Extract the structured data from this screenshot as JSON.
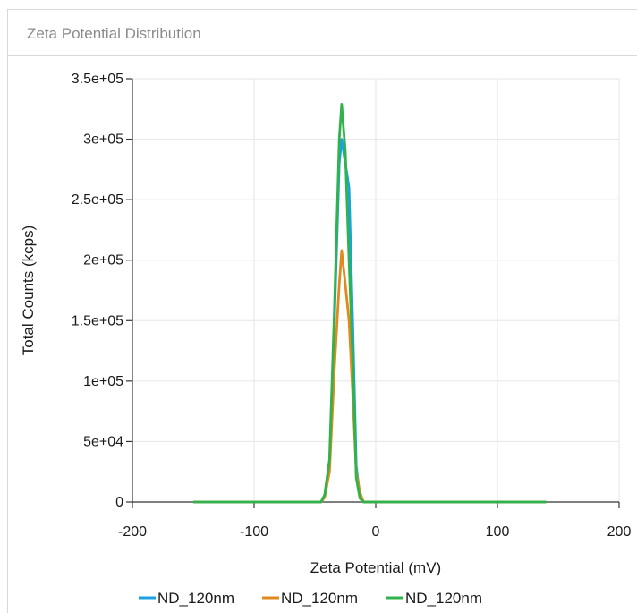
{
  "panel": {
    "title": "Zeta Potential Distribution"
  },
  "chart_data": {
    "type": "line",
    "title": "",
    "xlabel": "Zeta Potential (mV)",
    "ylabel": "Total Counts (kcps)",
    "xlim": [
      -200,
      200
    ],
    "ylim": [
      0,
      350000
    ],
    "x_ticks": [
      -200,
      -100,
      0,
      100,
      200
    ],
    "x_tick_labels": [
      "-200",
      "-100",
      "0",
      "100",
      "200"
    ],
    "y_ticks": [
      0,
      50000,
      100000,
      150000,
      200000,
      250000,
      300000,
      350000
    ],
    "y_tick_labels": [
      "0",
      "5e+04",
      "1e+05",
      "1.5e+05",
      "2e+05",
      "2.5e+05",
      "3e+05",
      "3.5e+05"
    ],
    "grid": true,
    "legend_position": "bottom",
    "series": [
      {
        "name": "ND_120nm",
        "color": "#1ba1e2",
        "x": [
          -150,
          -45,
          -42,
          -38,
          -34,
          -30,
          -28,
          -25,
          -22,
          -19,
          -16,
          -13,
          -10,
          140
        ],
        "y": [
          0,
          0,
          5000,
          30000,
          150000,
          280000,
          300000,
          280000,
          260000,
          150000,
          30000,
          5000,
          0,
          0
        ]
      },
      {
        "name": "ND_120nm",
        "color": "#e08a1e",
        "x": [
          -150,
          -45,
          -42,
          -38,
          -34,
          -30,
          -28,
          -25,
          -22,
          -19,
          -16,
          -13,
          -10,
          140
        ],
        "y": [
          0,
          0,
          4000,
          25000,
          110000,
          180000,
          208000,
          180000,
          150000,
          90000,
          25000,
          8000,
          0,
          0
        ]
      },
      {
        "name": "ND_120nm",
        "color": "#2fb34a",
        "x": [
          -150,
          -45,
          -42,
          -38,
          -34,
          -30,
          -28,
          -25,
          -22,
          -19,
          -16,
          -13,
          -10,
          140
        ],
        "y": [
          0,
          0,
          6000,
          35000,
          160000,
          300000,
          329000,
          290000,
          200000,
          120000,
          20000,
          3000,
          0,
          0
        ]
      }
    ]
  }
}
